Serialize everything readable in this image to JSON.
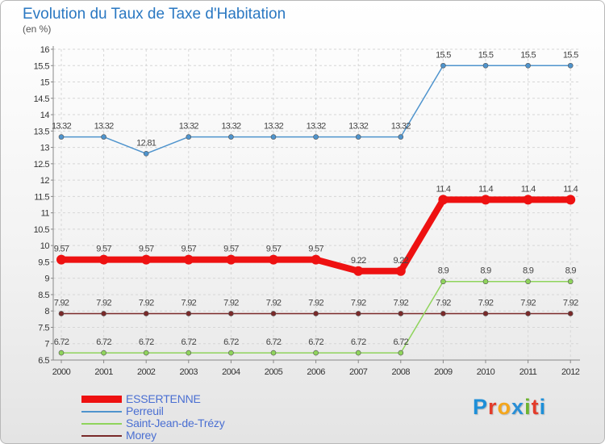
{
  "header": {
    "title": "Evolution du Taux de Taxe d'Habitation",
    "unit": "(en %)"
  },
  "chart_data": {
    "type": "line",
    "title": "Evolution du Taux de Taxe d'Habitation",
    "ylabel": "(en %)",
    "xlabel": "",
    "categories": [
      "2000",
      "2001",
      "2002",
      "2003",
      "2004",
      "2005",
      "2006",
      "2007",
      "2008",
      "2009",
      "2010",
      "2011",
      "2012"
    ],
    "ylim": [
      6.5,
      16
    ],
    "yticks": [
      "6.5",
      "7",
      "7.5",
      "8",
      "8.5",
      "9",
      "9.5",
      "10",
      "10.5",
      "11",
      "11.5",
      "12",
      "12.5",
      "13",
      "13.5",
      "14",
      "14.5",
      "15",
      "15.5",
      "16"
    ],
    "grid": true,
    "legend_position": "bottom-left",
    "series": [
      {
        "name": "Morey",
        "color": "#7a2a2a",
        "values": [
          7.92,
          7.92,
          7.92,
          7.92,
          7.92,
          7.92,
          7.92,
          7.92,
          7.92,
          7.92,
          7.92,
          7.92,
          7.92
        ],
        "labels": [
          "7.92",
          "7.92",
          "7.92",
          "7.92",
          "7.92",
          "7.92",
          "7.92",
          "7.92",
          "7.92",
          "7.92",
          "7.92",
          "7.92",
          "7.92"
        ]
      },
      {
        "name": "Saint-Jean-de-Trézy",
        "color": "#8fd45c",
        "values": [
          6.72,
          6.72,
          6.72,
          6.72,
          6.72,
          6.72,
          6.72,
          6.72,
          6.72,
          8.9,
          8.9,
          8.9,
          8.9
        ],
        "labels": [
          "6.72",
          "6.72",
          "6.72",
          "6.72",
          "6.72",
          "6.72",
          "6.72",
          "6.72",
          "6.72",
          "8.9",
          "8.9",
          "8.9",
          "8.9"
        ]
      },
      {
        "name": "Perreuil",
        "color": "#4f94cd",
        "values": [
          13.32,
          13.32,
          12.81,
          13.32,
          13.32,
          13.32,
          13.32,
          13.32,
          13.32,
          15.5,
          15.5,
          15.5,
          15.5
        ],
        "labels": [
          "13.32",
          "13.32",
          "12.81",
          "13.32",
          "13.32",
          "13.32",
          "13.32",
          "13.32",
          "13.32",
          "15.5",
          "15.5",
          "15.5",
          "15.5"
        ]
      },
      {
        "name": "ESSERTENNE",
        "color": "#ee1111",
        "values": [
          9.57,
          9.57,
          9.57,
          9.57,
          9.57,
          9.57,
          9.57,
          9.22,
          9.22,
          11.4,
          11.4,
          11.4,
          11.4
        ],
        "labels": [
          "9.57",
          "9.57",
          "9.57",
          "9.57",
          "9.57",
          "9.57",
          "9.57",
          "9.22",
          "9.22",
          "11.4",
          "11.4",
          "11.4",
          "11.4"
        ]
      }
    ]
  },
  "legend": {
    "items": [
      {
        "name": "ESSERTENNE",
        "color": "#ee1111",
        "thick": true
      },
      {
        "name": "Perreuil",
        "color": "#4f94cd",
        "thick": false
      },
      {
        "name": "Saint-Jean-de-Trézy",
        "color": "#8fd45c",
        "thick": false
      },
      {
        "name": "Morey",
        "color": "#7a2a2a",
        "thick": false
      }
    ]
  },
  "logo": {
    "letters": [
      "P",
      "r",
      "o",
      "x",
      "i",
      "t",
      "i"
    ],
    "colors": [
      "#1e8fd8",
      "#e33c2b",
      "#f4a61c",
      "#2a8fd6",
      "#6db32f",
      "#e33c2b",
      "#1e8fd8"
    ]
  }
}
